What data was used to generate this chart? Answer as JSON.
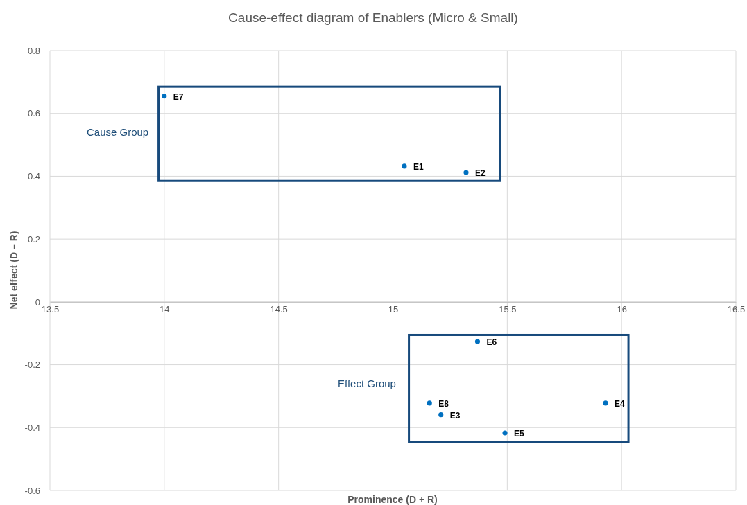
{
  "chart_data": {
    "type": "scatter",
    "title": "Cause-effect diagram of Enablers (Micro & Small)",
    "xlabel": "Prominence (D + R)",
    "ylabel": "Net effect (D – R)",
    "x": [
      15.05,
      15.32,
      15.21,
      15.93,
      15.49,
      15.37,
      14.0,
      15.16
    ],
    "series": [
      {
        "color": "#0070c0",
        "values": [
          0.432,
          0.412,
          -0.359,
          -0.322,
          -0.417,
          -0.126,
          0.655,
          -0.322
        ]
      }
    ],
    "xlim": [
      13.5,
      16.5
    ],
    "xticks": [
      13.5,
      14,
      14.5,
      15,
      15.5,
      16,
      16.5
    ],
    "ylim": [
      -0.6,
      0.8
    ],
    "yticks": [
      -0.6,
      -0.4,
      -0.2,
      0,
      0.2,
      0.4,
      0.6,
      0.8
    ],
    "grid": true,
    "marker": "circle",
    "annotations": [
      {
        "text": "E1",
        "x": 15.05,
        "y": 0.432
      },
      {
        "text": "E2",
        "x": 15.32,
        "y": 0.412
      },
      {
        "text": "E3",
        "x": 15.21,
        "y": -0.359
      },
      {
        "text": "E4",
        "x": 15.93,
        "y": -0.322
      },
      {
        "text": "E5",
        "x": 15.49,
        "y": -0.417
      },
      {
        "text": "E6",
        "x": 15.37,
        "y": -0.126
      },
      {
        "text": "E7",
        "x": 14.0,
        "y": 0.655
      },
      {
        "text": "E8",
        "x": 15.16,
        "y": -0.322
      },
      "Cause Group",
      "Effect Group"
    ]
  }
}
